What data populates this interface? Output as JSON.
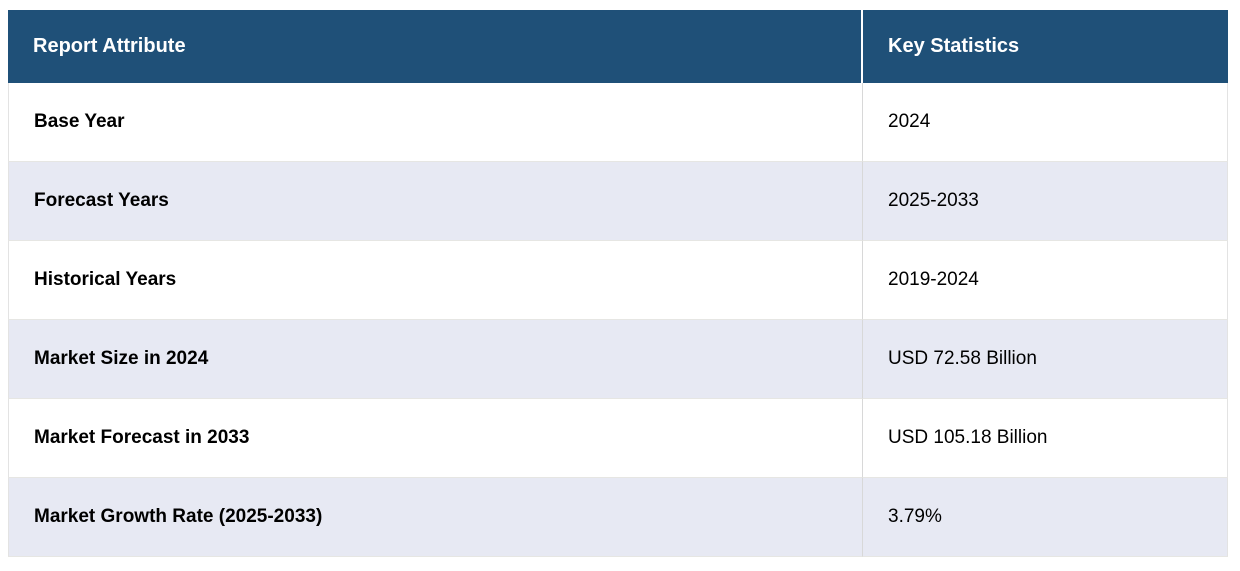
{
  "chart_data": {
    "type": "table",
    "title": "",
    "columns": [
      "Report Attribute",
      "Key Statistics"
    ],
    "rows": [
      [
        "Base Year",
        "2024"
      ],
      [
        "Forecast Years",
        "2025-2033"
      ],
      [
        "Historical Years",
        "2019-2024"
      ],
      [
        "Market Size in 2024",
        "USD 72.58 Billion"
      ],
      [
        "Market Forecast in 2033",
        "USD 105.18 Billion"
      ],
      [
        "Market Growth Rate (2025-2033)",
        "3.79%"
      ]
    ]
  },
  "theme": {
    "header_bg": "#1f5078",
    "header_text_color": "#ffffff",
    "row_bg": "#ffffff",
    "row_alt_bg": "#e7e9f3",
    "body_text_color": "#000000",
    "column_divider_color": "#d8d8d8",
    "border_color": "#e6e6e3"
  }
}
